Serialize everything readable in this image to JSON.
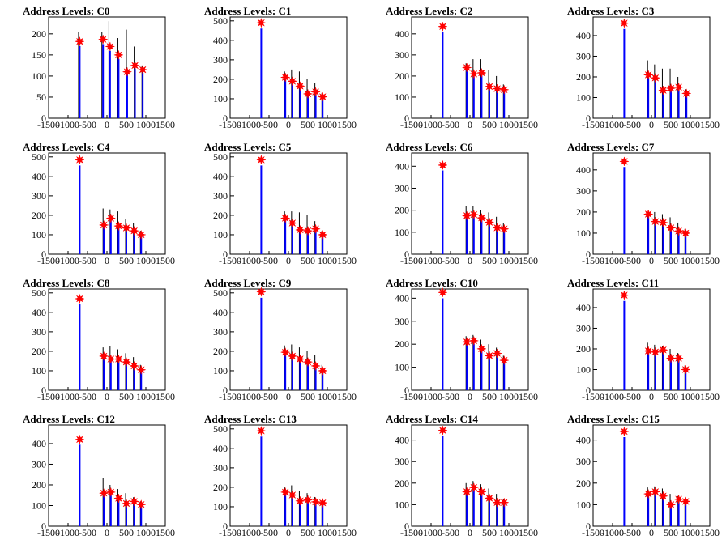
{
  "colors": {
    "black_hist": "#000000",
    "blue_hist": "#0000ff",
    "peak_marker": "#ff0000",
    "frame": "#000000"
  },
  "chart_data": [
    {
      "type": "bar",
      "title": "Address Levels: C0",
      "xlim": [
        -1500,
        1500
      ],
      "ylim": [
        0,
        240
      ],
      "yticks": [
        0,
        50,
        100,
        150,
        200
      ],
      "xticks": [
        -1500,
        -1000,
        -500,
        0,
        500,
        1000,
        1500
      ],
      "peaks": [
        {
          "x": -700,
          "y": 182
        },
        {
          "x": -100,
          "y": 187
        },
        {
          "x": 80,
          "y": 170
        },
        {
          "x": 300,
          "y": 150
        },
        {
          "x": 520,
          "y": 110
        },
        {
          "x": 720,
          "y": 125
        },
        {
          "x": 920,
          "y": 115
        }
      ],
      "black_bars": [
        {
          "x": -730,
          "y": 205
        },
        {
          "x": -130,
          "y": 205
        },
        {
          "x": 50,
          "y": 230
        },
        {
          "x": 280,
          "y": 190
        },
        {
          "x": 500,
          "y": 210
        },
        {
          "x": 700,
          "y": 170
        },
        {
          "x": 900,
          "y": 125
        }
      ]
    },
    {
      "type": "bar",
      "title": "Address Levels: C1",
      "xlim": [
        -1500,
        1500
      ],
      "ylim": [
        0,
        520
      ],
      "yticks": [
        0,
        100,
        200,
        300,
        400,
        500
      ],
      "xticks": [
        -1500,
        -1000,
        -500,
        0,
        500,
        1000,
        1500
      ],
      "peaks": [
        {
          "x": -700,
          "y": 490
        },
        {
          "x": -80,
          "y": 210
        },
        {
          "x": 100,
          "y": 190
        },
        {
          "x": 300,
          "y": 165
        },
        {
          "x": 500,
          "y": 125
        },
        {
          "x": 700,
          "y": 135
        },
        {
          "x": 880,
          "y": 110
        }
      ],
      "black_bars": [
        {
          "x": -100,
          "y": 240
        },
        {
          "x": 80,
          "y": 250
        },
        {
          "x": 280,
          "y": 240
        },
        {
          "x": 480,
          "y": 200
        },
        {
          "x": 680,
          "y": 180
        },
        {
          "x": 860,
          "y": 130
        }
      ]
    },
    {
      "type": "bar",
      "title": "Address Levels: C2",
      "xlim": [
        -1500,
        1500
      ],
      "ylim": [
        0,
        480
      ],
      "yticks": [
        0,
        100,
        200,
        300,
        400
      ],
      "xticks": [
        -1500,
        -1000,
        -500,
        0,
        500,
        1000,
        1500
      ],
      "peaks": [
        {
          "x": -700,
          "y": 435
        },
        {
          "x": -80,
          "y": 240
        },
        {
          "x": 100,
          "y": 210
        },
        {
          "x": 300,
          "y": 215
        },
        {
          "x": 500,
          "y": 150
        },
        {
          "x": 700,
          "y": 140
        },
        {
          "x": 880,
          "y": 135
        }
      ],
      "black_bars": [
        {
          "x": -100,
          "y": 260
        },
        {
          "x": 80,
          "y": 280
        },
        {
          "x": 280,
          "y": 280
        },
        {
          "x": 480,
          "y": 230
        },
        {
          "x": 680,
          "y": 200
        },
        {
          "x": 860,
          "y": 160
        }
      ]
    },
    {
      "type": "bar",
      "title": "Address Levels: C3",
      "xlim": [
        -1500,
        1500
      ],
      "ylim": [
        0,
        490
      ],
      "yticks": [
        0,
        100,
        200,
        300,
        400
      ],
      "xticks": [
        -1500,
        -1000,
        -500,
        0,
        500,
        1000,
        1500
      ],
      "peaks": [
        {
          "x": -700,
          "y": 460
        },
        {
          "x": -80,
          "y": 210
        },
        {
          "x": 100,
          "y": 195
        },
        {
          "x": 300,
          "y": 135
        },
        {
          "x": 500,
          "y": 145
        },
        {
          "x": 700,
          "y": 150
        },
        {
          "x": 900,
          "y": 120
        }
      ],
      "black_bars": [
        {
          "x": -100,
          "y": 280
        },
        {
          "x": 80,
          "y": 260
        },
        {
          "x": 280,
          "y": 240
        },
        {
          "x": 480,
          "y": 240
        },
        {
          "x": 680,
          "y": 200
        },
        {
          "x": 880,
          "y": 140
        }
      ]
    },
    {
      "type": "bar",
      "title": "Address Levels: C4",
      "xlim": [
        -1500,
        1500
      ],
      "ylim": [
        0,
        520
      ],
      "yticks": [
        0,
        100,
        200,
        300,
        400,
        500
      ],
      "xticks": [
        -1500,
        -1000,
        -500,
        0,
        500,
        1000,
        1500
      ],
      "peaks": [
        {
          "x": -700,
          "y": 485
        },
        {
          "x": -80,
          "y": 150
        },
        {
          "x": 100,
          "y": 185
        },
        {
          "x": 300,
          "y": 145
        },
        {
          "x": 500,
          "y": 135
        },
        {
          "x": 700,
          "y": 120
        },
        {
          "x": 880,
          "y": 100
        }
      ],
      "black_bars": [
        {
          "x": -100,
          "y": 235
        },
        {
          "x": 80,
          "y": 230
        },
        {
          "x": 280,
          "y": 220
        },
        {
          "x": 480,
          "y": 180
        },
        {
          "x": 680,
          "y": 160
        },
        {
          "x": 860,
          "y": 120
        }
      ]
    },
    {
      "type": "bar",
      "title": "Address Levels: C5",
      "xlim": [
        -1500,
        1500
      ],
      "ylim": [
        0,
        520
      ],
      "yticks": [
        0,
        100,
        200,
        300,
        400,
        500
      ],
      "xticks": [
        -1500,
        -1000,
        -500,
        0,
        500,
        1000,
        1500
      ],
      "peaks": [
        {
          "x": -700,
          "y": 485
        },
        {
          "x": -80,
          "y": 185
        },
        {
          "x": 100,
          "y": 160
        },
        {
          "x": 300,
          "y": 125
        },
        {
          "x": 500,
          "y": 120
        },
        {
          "x": 700,
          "y": 130
        },
        {
          "x": 880,
          "y": 100
        }
      ],
      "black_bars": [
        {
          "x": -100,
          "y": 220
        },
        {
          "x": 80,
          "y": 220
        },
        {
          "x": 280,
          "y": 215
        },
        {
          "x": 480,
          "y": 200
        },
        {
          "x": 680,
          "y": 170
        },
        {
          "x": 860,
          "y": 120
        }
      ]
    },
    {
      "type": "bar",
      "title": "Address Levels: C6",
      "xlim": [
        -1500,
        1500
      ],
      "ylim": [
        0,
        460
      ],
      "yticks": [
        0,
        100,
        200,
        300,
        400
      ],
      "xticks": [
        -1500,
        -1000,
        -500,
        0,
        500,
        1000,
        1500
      ],
      "peaks": [
        {
          "x": -700,
          "y": 405
        },
        {
          "x": -80,
          "y": 175
        },
        {
          "x": 100,
          "y": 180
        },
        {
          "x": 300,
          "y": 165
        },
        {
          "x": 500,
          "y": 145
        },
        {
          "x": 700,
          "y": 120
        },
        {
          "x": 880,
          "y": 115
        }
      ],
      "black_bars": [
        {
          "x": -100,
          "y": 220
        },
        {
          "x": 80,
          "y": 220
        },
        {
          "x": 280,
          "y": 200
        },
        {
          "x": 480,
          "y": 190
        },
        {
          "x": 680,
          "y": 170
        },
        {
          "x": 860,
          "y": 140
        }
      ]
    },
    {
      "type": "bar",
      "title": "Address Levels: C7",
      "xlim": [
        -1500,
        1500
      ],
      "ylim": [
        0,
        480
      ],
      "yticks": [
        0,
        100,
        200,
        300,
        400
      ],
      "xticks": [
        -1500,
        -1000,
        -500,
        0,
        500,
        1000,
        1500
      ],
      "peaks": [
        {
          "x": -700,
          "y": 440
        },
        {
          "x": -80,
          "y": 190
        },
        {
          "x": 100,
          "y": 155
        },
        {
          "x": 300,
          "y": 150
        },
        {
          "x": 500,
          "y": 125
        },
        {
          "x": 700,
          "y": 110
        },
        {
          "x": 880,
          "y": 100
        }
      ],
      "black_bars": [
        {
          "x": -100,
          "y": 200
        },
        {
          "x": 80,
          "y": 200
        },
        {
          "x": 280,
          "y": 190
        },
        {
          "x": 480,
          "y": 175
        },
        {
          "x": 680,
          "y": 150
        },
        {
          "x": 860,
          "y": 120
        }
      ]
    },
    {
      "type": "bar",
      "title": "Address Levels: C8",
      "xlim": [
        -1500,
        1500
      ],
      "ylim": [
        0,
        520
      ],
      "yticks": [
        0,
        100,
        200,
        300,
        400,
        500
      ],
      "xticks": [
        -1500,
        -1000,
        -500,
        0,
        500,
        1000,
        1500
      ],
      "peaks": [
        {
          "x": -700,
          "y": 470
        },
        {
          "x": -80,
          "y": 175
        },
        {
          "x": 100,
          "y": 160
        },
        {
          "x": 300,
          "y": 160
        },
        {
          "x": 500,
          "y": 145
        },
        {
          "x": 700,
          "y": 125
        },
        {
          "x": 880,
          "y": 105
        }
      ],
      "black_bars": [
        {
          "x": -100,
          "y": 220
        },
        {
          "x": 80,
          "y": 225
        },
        {
          "x": 280,
          "y": 210
        },
        {
          "x": 480,
          "y": 190
        },
        {
          "x": 680,
          "y": 170
        },
        {
          "x": 860,
          "y": 130
        }
      ]
    },
    {
      "type": "bar",
      "title": "Address Levels: C9",
      "xlim": [
        -1500,
        1500
      ],
      "ylim": [
        0,
        520
      ],
      "yticks": [
        0,
        100,
        200,
        300,
        400,
        500
      ],
      "xticks": [
        -1500,
        -1000,
        -500,
        0,
        500,
        1000,
        1500
      ],
      "peaks": [
        {
          "x": -700,
          "y": 505
        },
        {
          "x": -80,
          "y": 195
        },
        {
          "x": 100,
          "y": 175
        },
        {
          "x": 300,
          "y": 160
        },
        {
          "x": 500,
          "y": 145
        },
        {
          "x": 700,
          "y": 125
        },
        {
          "x": 880,
          "y": 100
        }
      ],
      "black_bars": [
        {
          "x": -100,
          "y": 230
        },
        {
          "x": 80,
          "y": 235
        },
        {
          "x": 280,
          "y": 220
        },
        {
          "x": 480,
          "y": 200
        },
        {
          "x": 680,
          "y": 180
        },
        {
          "x": 860,
          "y": 130
        }
      ]
    },
    {
      "type": "bar",
      "title": "Address Levels: C10",
      "xlim": [
        -1500,
        1500
      ],
      "ylim": [
        0,
        440
      ],
      "yticks": [
        0,
        100,
        200,
        300,
        400
      ],
      "xticks": [
        -1500,
        -1000,
        -500,
        0,
        500,
        1000,
        1500
      ],
      "peaks": [
        {
          "x": -700,
          "y": 425
        },
        {
          "x": -80,
          "y": 210
        },
        {
          "x": 100,
          "y": 215
        },
        {
          "x": 300,
          "y": 180
        },
        {
          "x": 500,
          "y": 150
        },
        {
          "x": 700,
          "y": 160
        },
        {
          "x": 880,
          "y": 130
        }
      ],
      "black_bars": [
        {
          "x": -100,
          "y": 235
        },
        {
          "x": 80,
          "y": 240
        },
        {
          "x": 280,
          "y": 220
        },
        {
          "x": 480,
          "y": 200
        },
        {
          "x": 680,
          "y": 185
        },
        {
          "x": 860,
          "y": 150
        }
      ]
    },
    {
      "type": "bar",
      "title": "Address Levels: C11",
      "xlim": [
        -1500,
        1500
      ],
      "ylim": [
        0,
        490
      ],
      "yticks": [
        0,
        100,
        200,
        300,
        400
      ],
      "xticks": [
        -1500,
        -1000,
        -500,
        0,
        500,
        1000,
        1500
      ],
      "peaks": [
        {
          "x": -700,
          "y": 460
        },
        {
          "x": -80,
          "y": 190
        },
        {
          "x": 100,
          "y": 185
        },
        {
          "x": 300,
          "y": 195
        },
        {
          "x": 500,
          "y": 155
        },
        {
          "x": 700,
          "y": 155
        },
        {
          "x": 880,
          "y": 100
        }
      ],
      "black_bars": [
        {
          "x": -100,
          "y": 230
        },
        {
          "x": 80,
          "y": 220
        },
        {
          "x": 280,
          "y": 215
        },
        {
          "x": 480,
          "y": 200
        },
        {
          "x": 680,
          "y": 180
        },
        {
          "x": 860,
          "y": 120
        }
      ]
    },
    {
      "type": "bar",
      "title": "Address Levels: C12",
      "xlim": [
        -1500,
        1500
      ],
      "ylim": [
        0,
        490
      ],
      "yticks": [
        0,
        100,
        200,
        300,
        400
      ],
      "xticks": [
        -1500,
        -1000,
        -500,
        0,
        500,
        1000,
        1500
      ],
      "peaks": [
        {
          "x": -700,
          "y": 420
        },
        {
          "x": -80,
          "y": 160
        },
        {
          "x": 100,
          "y": 165
        },
        {
          "x": 300,
          "y": 135
        },
        {
          "x": 500,
          "y": 110
        },
        {
          "x": 700,
          "y": 120
        },
        {
          "x": 880,
          "y": 105
        }
      ],
      "black_bars": [
        {
          "x": -100,
          "y": 235
        },
        {
          "x": 80,
          "y": 200
        },
        {
          "x": 280,
          "y": 180
        },
        {
          "x": 480,
          "y": 160
        },
        {
          "x": 680,
          "y": 140
        },
        {
          "x": 860,
          "y": 120
        }
      ]
    },
    {
      "type": "bar",
      "title": "Address Levels: C13",
      "xlim": [
        -1500,
        1500
      ],
      "ylim": [
        0,
        520
      ],
      "yticks": [
        0,
        100,
        200,
        300,
        400,
        500
      ],
      "xticks": [
        -1500,
        -1000,
        -500,
        0,
        500,
        1000,
        1500
      ],
      "peaks": [
        {
          "x": -700,
          "y": 490
        },
        {
          "x": -80,
          "y": 175
        },
        {
          "x": 100,
          "y": 160
        },
        {
          "x": 300,
          "y": 130
        },
        {
          "x": 500,
          "y": 135
        },
        {
          "x": 700,
          "y": 125
        },
        {
          "x": 880,
          "y": 120
        }
      ],
      "black_bars": [
        {
          "x": -100,
          "y": 200
        },
        {
          "x": 80,
          "y": 210
        },
        {
          "x": 280,
          "y": 180
        },
        {
          "x": 480,
          "y": 170
        },
        {
          "x": 680,
          "y": 150
        },
        {
          "x": 860,
          "y": 130
        }
      ]
    },
    {
      "type": "bar",
      "title": "Address Levels: C14",
      "xlim": [
        -1500,
        1500
      ],
      "ylim": [
        0,
        470
      ],
      "yticks": [
        0,
        100,
        200,
        300,
        400
      ],
      "xticks": [
        -1500,
        -1000,
        -500,
        0,
        500,
        1000,
        1500
      ],
      "peaks": [
        {
          "x": -700,
          "y": 445
        },
        {
          "x": -80,
          "y": 160
        },
        {
          "x": 100,
          "y": 180
        },
        {
          "x": 300,
          "y": 160
        },
        {
          "x": 500,
          "y": 130
        },
        {
          "x": 700,
          "y": 110
        },
        {
          "x": 880,
          "y": 110
        }
      ],
      "black_bars": [
        {
          "x": -100,
          "y": 200
        },
        {
          "x": 80,
          "y": 210
        },
        {
          "x": 280,
          "y": 195
        },
        {
          "x": 480,
          "y": 175
        },
        {
          "x": 680,
          "y": 150
        },
        {
          "x": 860,
          "y": 125
        }
      ]
    },
    {
      "type": "bar",
      "title": "Address Levels: C15",
      "xlim": [
        -1500,
        1500
      ],
      "ylim": [
        0,
        470
      ],
      "yticks": [
        0,
        100,
        200,
        300,
        400
      ],
      "xticks": [
        -1500,
        -1000,
        -500,
        0,
        500,
        1000,
        1500
      ],
      "peaks": [
        {
          "x": -700,
          "y": 440
        },
        {
          "x": -80,
          "y": 150
        },
        {
          "x": 100,
          "y": 160
        },
        {
          "x": 300,
          "y": 140
        },
        {
          "x": 500,
          "y": 100
        },
        {
          "x": 700,
          "y": 125
        },
        {
          "x": 880,
          "y": 115
        }
      ],
      "black_bars": [
        {
          "x": -100,
          "y": 180
        },
        {
          "x": 80,
          "y": 185
        },
        {
          "x": 280,
          "y": 175
        },
        {
          "x": 480,
          "y": 150
        },
        {
          "x": 680,
          "y": 140
        },
        {
          "x": 860,
          "y": 125
        }
      ]
    }
  ]
}
